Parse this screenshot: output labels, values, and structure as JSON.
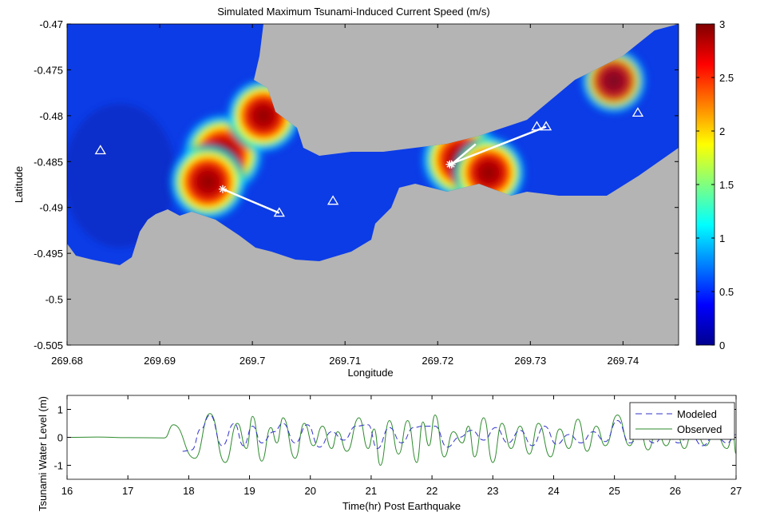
{
  "chart_data": [
    {
      "type": "heatmap",
      "title": "Simulated Maximum Tsunami-Induced Current Speed (m/s)",
      "xlabel": "Longitude",
      "ylabel": "Latitude",
      "xlim": [
        269.68,
        269.746
      ],
      "ylim": [
        -0.505,
        -0.47
      ],
      "xticks": [
        "269.68",
        "269.69",
        "269.7",
        "269.71",
        "269.72",
        "269.73",
        "269.74"
      ],
      "xtick_values": [
        269.68,
        269.69,
        269.7,
        269.71,
        269.72,
        269.73,
        269.74
      ],
      "yticks": [
        "-0.47",
        "-0.475",
        "-0.48",
        "-0.485",
        "-0.49",
        "-0.495",
        "-0.5",
        "-0.505"
      ],
      "ytick_values": [
        -0.47,
        -0.475,
        -0.48,
        -0.485,
        -0.49,
        -0.495,
        -0.5,
        -0.505
      ],
      "colorbar": {
        "range": [
          0,
          3
        ],
        "ticks": [
          "0",
          "0.5",
          "1",
          "1.5",
          "2",
          "2.5",
          "3"
        ],
        "tick_values": [
          0,
          0.5,
          1,
          1.5,
          2,
          2.5,
          3
        ],
        "colormap": "jet"
      },
      "hotspots": [
        {
          "lon": 269.6968,
          "lat": -0.4842,
          "speed": 3.0
        },
        {
          "lon": 269.6952,
          "lat": -0.4872,
          "speed": 2.8
        },
        {
          "lon": 269.7012,
          "lat": -0.48,
          "speed": 2.6
        },
        {
          "lon": 269.7226,
          "lat": -0.4848,
          "speed": 3.0
        },
        {
          "lon": 269.7255,
          "lat": -0.4862,
          "speed": 2.6
        },
        {
          "lon": 269.739,
          "lat": -0.4762,
          "speed": 2.2
        }
      ],
      "markers": [
        {
          "lon": 269.6836,
          "lat": -0.4838
        },
        {
          "lon": 269.7087,
          "lat": -0.4893
        },
        {
          "lon": 269.7029,
          "lat": -0.4906
        },
        {
          "lon": 269.7307,
          "lat": -0.4812
        },
        {
          "lon": 269.7317,
          "lat": -0.4812
        },
        {
          "lon": 269.7416,
          "lat": -0.4797
        }
      ],
      "vectors": [
        {
          "from": [
            269.6968,
            -0.488
          ],
          "to": [
            269.7029,
            -0.4906
          ]
        },
        {
          "from": [
            269.7213,
            -0.4853
          ],
          "to": [
            269.7317,
            -0.4812
          ]
        },
        {
          "from": [
            269.7215,
            -0.4853
          ],
          "to": [
            269.7241,
            -0.4831
          ]
        }
      ]
    },
    {
      "type": "line",
      "xlabel": "Time(hr) Post Earthquake",
      "ylabel": "Tsunami Water Level (m)",
      "xlim": [
        16,
        27
      ],
      "ylim": [
        -1.5,
        1.5
      ],
      "xticks": [
        "16",
        "17",
        "18",
        "19",
        "20",
        "21",
        "22",
        "23",
        "24",
        "25",
        "26",
        "27"
      ],
      "xtick_values": [
        16,
        17,
        18,
        19,
        20,
        21,
        22,
        23,
        24,
        25,
        26,
        27
      ],
      "yticks": [
        "1",
        "0",
        "-1"
      ],
      "ytick_values": [
        1,
        0,
        -1
      ],
      "legend_position": "top-right",
      "series": [
        {
          "name": "Modeled",
          "color": "#3333cc",
          "style": "dashed",
          "points": [
            [
              17.9,
              -0.5
            ],
            [
              18.05,
              -0.45
            ],
            [
              18.2,
              0.3
            ],
            [
              18.35,
              0.8
            ],
            [
              18.55,
              -0.3
            ],
            [
              18.75,
              0.5
            ],
            [
              18.9,
              -0.3
            ],
            [
              19.05,
              0.4
            ],
            [
              19.2,
              -0.2
            ],
            [
              19.4,
              0.2
            ],
            [
              19.55,
              0.5
            ],
            [
              19.75,
              -0.2
            ],
            [
              19.95,
              0.45
            ],
            [
              20.15,
              -0.35
            ],
            [
              20.35,
              0.2
            ],
            [
              20.55,
              -0.1
            ],
            [
              20.75,
              0.4
            ],
            [
              20.95,
              0.45
            ],
            [
              21.1,
              -0.4
            ],
            [
              21.3,
              0.35
            ],
            [
              21.5,
              -0.2
            ],
            [
              21.7,
              0.35
            ],
            [
              21.85,
              0.4
            ],
            [
              22.05,
              0.4
            ],
            [
              22.25,
              -0.35
            ],
            [
              22.45,
              0.0
            ],
            [
              22.65,
              0.25
            ],
            [
              22.85,
              -0.1
            ],
            [
              23.05,
              0.35
            ],
            [
              23.25,
              -0.2
            ],
            [
              23.45,
              0.25
            ],
            [
              23.65,
              -0.3
            ],
            [
              23.85,
              0.4
            ],
            [
              24.05,
              -0.25
            ],
            [
              24.25,
              0.1
            ],
            [
              24.45,
              -0.2
            ],
            [
              24.65,
              0.2
            ],
            [
              24.85,
              -0.15
            ],
            [
              25.05,
              0.6
            ],
            [
              25.25,
              -0.2
            ],
            [
              25.45,
              0.1
            ],
            [
              25.65,
              -0.2
            ],
            [
              25.85,
              0.15
            ],
            [
              26.05,
              -0.2
            ],
            [
              26.25,
              0.1
            ],
            [
              26.45,
              -0.3
            ],
            [
              26.65,
              0.1
            ],
            [
              26.85,
              -0.2
            ],
            [
              27,
              0.1
            ]
          ]
        },
        {
          "name": "Observed",
          "color": "#2e8b2e",
          "style": "solid",
          "points": [
            [
              16,
              0
            ],
            [
              16.5,
              0.01
            ],
            [
              17,
              -0.01
            ],
            [
              17.6,
              -0.02
            ],
            [
              17.75,
              0.45
            ],
            [
              18.1,
              -0.75
            ],
            [
              18.35,
              0.85
            ],
            [
              18.6,
              -0.9
            ],
            [
              18.8,
              0.5
            ],
            [
              18.95,
              -0.4
            ],
            [
              19.05,
              0.75
            ],
            [
              19.2,
              -0.85
            ],
            [
              19.35,
              0.35
            ],
            [
              19.45,
              -0.2
            ],
            [
              19.55,
              0.7
            ],
            [
              19.75,
              -0.75
            ],
            [
              19.9,
              0.5
            ],
            [
              20.05,
              -0.3
            ],
            [
              20.2,
              0.4
            ],
            [
              20.35,
              -0.4
            ],
            [
              20.45,
              0.2
            ],
            [
              20.6,
              -0.5
            ],
            [
              20.8,
              0.7
            ],
            [
              20.95,
              -0.4
            ],
            [
              21.05,
              0.3
            ],
            [
              21.15,
              -1.0
            ],
            [
              21.3,
              0.6
            ],
            [
              21.45,
              -0.6
            ],
            [
              21.6,
              0.6
            ],
            [
              21.75,
              -0.9
            ],
            [
              21.85,
              0.55
            ],
            [
              21.95,
              -0.3
            ],
            [
              22.05,
              0.8
            ],
            [
              22.2,
              -0.7
            ],
            [
              22.35,
              0.2
            ],
            [
              22.5,
              -0.2
            ],
            [
              22.6,
              0.4
            ],
            [
              22.7,
              -0.7
            ],
            [
              22.85,
              0.7
            ],
            [
              23.0,
              -0.9
            ],
            [
              23.15,
              0.5
            ],
            [
              23.3,
              -0.4
            ],
            [
              23.45,
              0.4
            ],
            [
              23.6,
              -0.6
            ],
            [
              23.75,
              0.5
            ],
            [
              23.95,
              -0.7
            ],
            [
              24.1,
              0.3
            ],
            [
              24.25,
              -0.4
            ],
            [
              24.4,
              0.65
            ],
            [
              24.55,
              -0.5
            ],
            [
              24.7,
              0.4
            ],
            [
              24.85,
              -0.3
            ],
            [
              25.05,
              0.8
            ],
            [
              25.25,
              -0.3
            ],
            [
              25.4,
              0.4
            ],
            [
              25.55,
              -0.45
            ],
            [
              25.7,
              0.25
            ],
            [
              25.85,
              -0.3
            ],
            [
              26.0,
              0.3
            ],
            [
              26.15,
              -0.4
            ],
            [
              26.3,
              0.4
            ],
            [
              26.5,
              -0.3
            ],
            [
              26.65,
              0.2
            ],
            [
              26.85,
              -0.4
            ],
            [
              26.95,
              0.1
            ],
            [
              27,
              -0.6
            ]
          ]
        }
      ]
    }
  ]
}
